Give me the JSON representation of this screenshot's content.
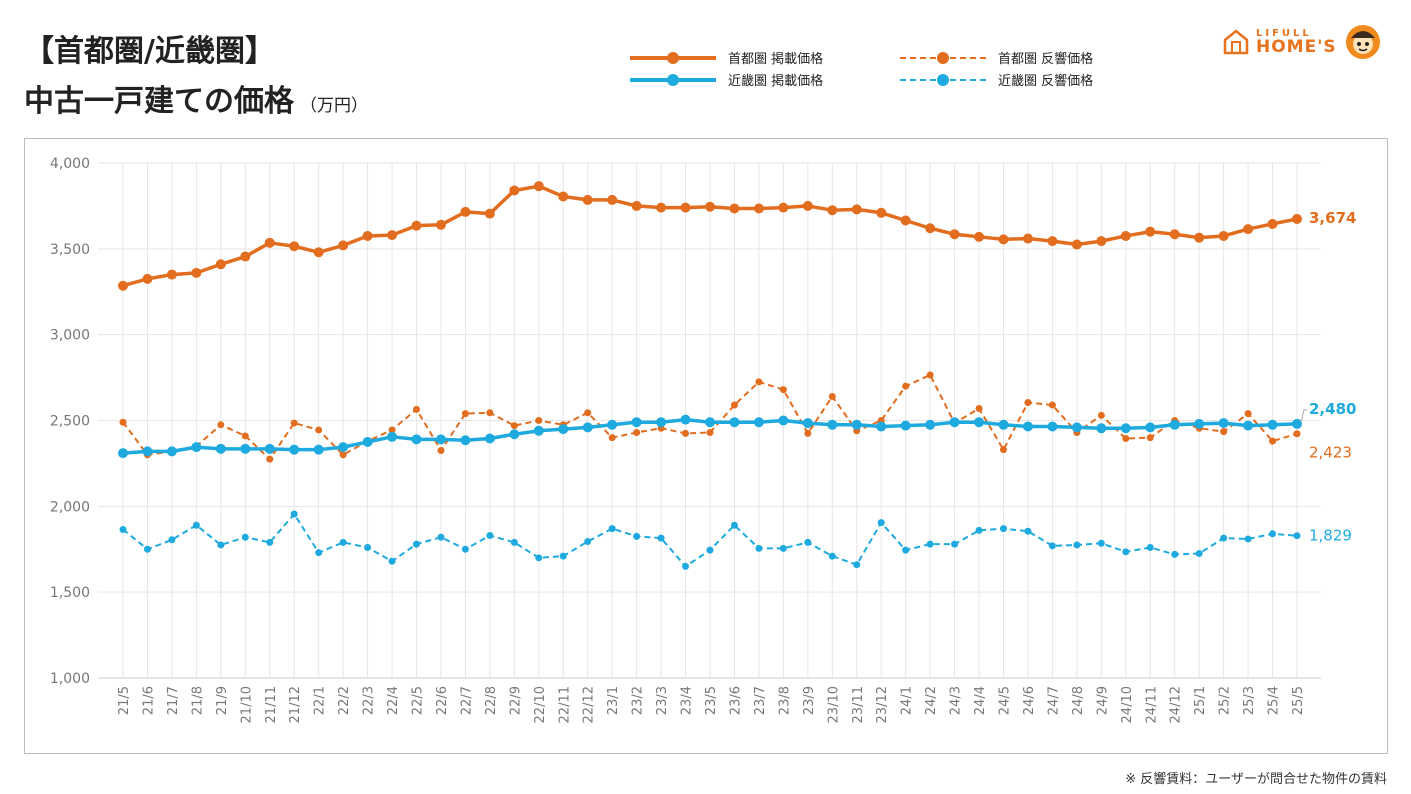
{
  "header": {
    "title_line1": "【首都圏/近畿圏】",
    "title_line2": "中古一戸建ての価格",
    "unit": "（万円）"
  },
  "logo": {
    "line1": "LIFULL",
    "line2": "HOME'S"
  },
  "note": "※ 反響賃料：ユーザーが問合せた物件の賃料",
  "colors": {
    "orange": "#e26d1f",
    "blue": "#1eaadf",
    "grid": "#e6e6e6",
    "axis_text": "#777777"
  },
  "chart_data": {
    "type": "line",
    "title": "【首都圏/近畿圏】中古一戸建ての価格",
    "ylabel": "（万円）",
    "xlabel": "",
    "ylim": [
      1000,
      4000
    ],
    "yticks": [
      "1,000",
      "1,500",
      "2,000",
      "2,500",
      "3,000",
      "3,500",
      "4,000"
    ],
    "ytick_values": [
      1000,
      1500,
      2000,
      2500,
      3000,
      3500,
      4000
    ],
    "categories": [
      "21/5",
      "21/6",
      "21/7",
      "21/8",
      "21/9",
      "21/10",
      "21/11",
      "21/12",
      "22/1",
      "22/2",
      "22/3",
      "22/4",
      "22/5",
      "22/6",
      "22/7",
      "22/8",
      "22/9",
      "22/10",
      "22/11",
      "22/12",
      "23/1",
      "23/2",
      "23/3",
      "23/4",
      "23/5",
      "23/6",
      "23/7",
      "23/8",
      "23/9",
      "23/10",
      "23/11",
      "23/12",
      "24/1",
      "24/2",
      "24/3",
      "24/4",
      "24/5",
      "24/6",
      "24/7",
      "24/8",
      "24/9",
      "24/10",
      "24/11",
      "24/12",
      "25/1",
      "25/2",
      "25/3",
      "25/4",
      "25/5"
    ],
    "series": [
      {
        "name": "首都圏 掲載価格",
        "style": "solid",
        "color": "orange",
        "end_label": "3,674",
        "values": [
          3285,
          3325,
          3350,
          3360,
          3410,
          3455,
          3535,
          3515,
          3480,
          3520,
          3575,
          3580,
          3635,
          3640,
          3715,
          3705,
          3840,
          3865,
          3805,
          3785,
          3785,
          3750,
          3740,
          3740,
          3745,
          3735,
          3735,
          3740,
          3750,
          3725,
          3730,
          3710,
          3665,
          3620,
          3585,
          3570,
          3555,
          3560,
          3545,
          3525,
          3545,
          3575,
          3600,
          3585,
          3565,
          3575,
          3615,
          3645,
          3674
        ]
      },
      {
        "name": "首都圏 反響価格",
        "style": "dashed",
        "color": "orange",
        "end_label": "2,423",
        "values": [
          2490,
          2300,
          2320,
          2350,
          2475,
          2410,
          2275,
          2485,
          2445,
          2300,
          2380,
          2445,
          2565,
          2325,
          2540,
          2545,
          2470,
          2500,
          2475,
          2545,
          2400,
          2430,
          2455,
          2425,
          2430,
          2590,
          2725,
          2680,
          2425,
          2640,
          2440,
          2500,
          2700,
          2765,
          2485,
          2570,
          2330,
          2605,
          2590,
          2430,
          2530,
          2395,
          2400,
          2500,
          2455,
          2435,
          2540,
          2380,
          2423
        ]
      },
      {
        "name": "近畿圏 掲載価格",
        "style": "solid",
        "color": "blue",
        "end_label": "2,480",
        "values": [
          2310,
          2320,
          2320,
          2345,
          2335,
          2335,
          2335,
          2330,
          2330,
          2345,
          2375,
          2405,
          2390,
          2390,
          2385,
          2395,
          2420,
          2440,
          2450,
          2460,
          2475,
          2490,
          2490,
          2505,
          2490,
          2490,
          2490,
          2500,
          2485,
          2475,
          2475,
          2465,
          2470,
          2475,
          2490,
          2490,
          2475,
          2465,
          2465,
          2460,
          2455,
          2455,
          2460,
          2475,
          2480,
          2485,
          2470,
          2475,
          2480
        ]
      },
      {
        "name": "近畿圏 反響価格",
        "style": "dashed",
        "color": "blue",
        "end_label": "1,829",
        "values": [
          1865,
          1750,
          1805,
          1890,
          1775,
          1820,
          1790,
          1955,
          1730,
          1790,
          1760,
          1680,
          1780,
          1820,
          1750,
          1830,
          1790,
          1700,
          1710,
          1795,
          1870,
          1825,
          1815,
          1650,
          1745,
          1890,
          1755,
          1755,
          1790,
          1710,
          1660,
          1905,
          1745,
          1780,
          1780,
          1860,
          1870,
          1855,
          1770,
          1775,
          1785,
          1735,
          1760,
          1720,
          1725,
          1815,
          1810,
          1840,
          1829
        ]
      }
    ]
  }
}
